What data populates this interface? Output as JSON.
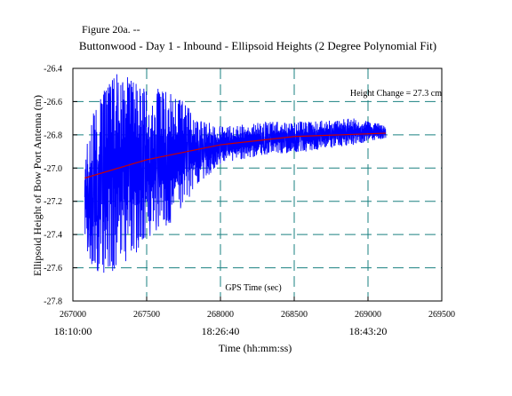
{
  "figure_label": "Figure 20a. --",
  "chart_data": {
    "type": "line",
    "title": "Buttonwood - Day 1 - Inbound - Ellipsoid Heights (2 Degree Polynomial Fit)",
    "xlabel": "Time (hh:mm:ss)",
    "ylabel": "Ellipsoid Height of Bow Port Antenna (m)",
    "inner_xlabel": "GPS Time (sec)",
    "annotation": "Height Change = 27.3 cm",
    "xlim": [
      267000,
      269500
    ],
    "ylim": [
      -27.8,
      -26.4
    ],
    "x_ticks": [
      267000,
      267500,
      268000,
      268500,
      269000,
      269500
    ],
    "x_tick_labels": [
      "267000",
      "267500",
      "268000",
      "268500",
      "269000",
      "269500"
    ],
    "y_ticks": [
      -26.4,
      -26.6,
      -26.8,
      -27.0,
      -27.2,
      -27.4,
      -27.6,
      -27.8
    ],
    "y_tick_labels": [
      "-26.4",
      "-26.6",
      "-26.8",
      "-27.0",
      "-27.2",
      "-27.4",
      "-27.6",
      "-27.8"
    ],
    "time_labels": [
      {
        "x": 267000,
        "label": "18:10:00"
      },
      {
        "x": 268000,
        "label": "18:26:40"
      },
      {
        "x": 269000,
        "label": "18:43:20"
      }
    ],
    "grid": true,
    "series": [
      {
        "color": "#0000ff",
        "x_range": [
          267080,
          269120
        ],
        "envelope": [
          {
            "x": 267080,
            "min": -27.45,
            "max": -26.9
          },
          {
            "x": 267150,
            "min": -27.65,
            "max": -26.6
          },
          {
            "x": 267300,
            "min": -27.62,
            "max": -26.4
          },
          {
            "x": 267500,
            "min": -27.45,
            "max": -26.5
          },
          {
            "x": 267700,
            "min": -27.3,
            "max": -26.55
          },
          {
            "x": 267850,
            "min": -27.1,
            "max": -26.7
          },
          {
            "x": 268000,
            "min": -26.98,
            "max": -26.75
          },
          {
            "x": 268300,
            "min": -26.92,
            "max": -26.72
          },
          {
            "x": 268600,
            "min": -26.9,
            "max": -26.72
          },
          {
            "x": 268900,
            "min": -26.86,
            "max": -26.7
          },
          {
            "x": 269120,
            "min": -26.82,
            "max": -26.74
          }
        ]
      },
      {
        "color": "#cc0000",
        "fit": "2nd-degree polynomial",
        "x": [
          267080,
          267500,
          268000,
          268500,
          269120
        ],
        "values": [
          -27.06,
          -26.95,
          -26.86,
          -26.81,
          -26.79
        ]
      }
    ]
  }
}
